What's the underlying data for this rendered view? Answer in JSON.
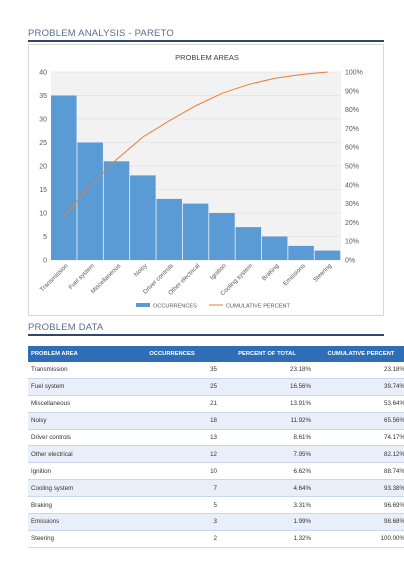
{
  "header": {
    "analysis_title": "PROBLEM ANALYSIS - PARETO",
    "data_title": "PROBLEM DATA"
  },
  "colors": {
    "bar": "#5b9bd5",
    "line": "#ed7d31",
    "table_header": "#2f6db5",
    "title_rule": "#31486a"
  },
  "chart_data": {
    "type": "bar",
    "title": "PROBLEM AREAS",
    "categories": [
      "Transmission",
      "Fuel system",
      "Miscellaneous",
      "Noisy",
      "Driver controls",
      "Other electrical",
      "Ignition",
      "Cooling system",
      "Braking",
      "Emissions",
      "Steering"
    ],
    "series": [
      {
        "name": "OCCURRENCES",
        "type": "bar",
        "axis": "left",
        "values": [
          35,
          25,
          21,
          18,
          13,
          12,
          10,
          7,
          5,
          3,
          2
        ]
      },
      {
        "name": "CUMULATIVE PERCENT",
        "type": "line",
        "axis": "right",
        "values": [
          23.18,
          39.74,
          53.64,
          65.56,
          74.17,
          82.12,
          88.74,
          93.38,
          96.69,
          98.68,
          100.0
        ]
      }
    ],
    "ylim": [
      0,
      40
    ],
    "yticks": [
      "0",
      "5",
      "10",
      "15",
      "20",
      "25",
      "30",
      "35",
      "40"
    ],
    "y2lim": [
      0,
      100
    ],
    "y2ticks": [
      "0%",
      "10%",
      "20%",
      "30%",
      "40%",
      "50%",
      "60%",
      "70%",
      "80%",
      "90%",
      "100%"
    ],
    "grid": true,
    "legend_position": "bottom"
  },
  "table": {
    "headers": [
      "PROBLEM AREA",
      "OCCURRENCES",
      "PERCENT OF TOTAL",
      "CUMULATIVE PERCENT"
    ],
    "rows": [
      [
        "Transmission",
        "35",
        "23.18%",
        "23.18%"
      ],
      [
        "Fuel system",
        "25",
        "16.56%",
        "39.74%"
      ],
      [
        "Miscellaneous",
        "21",
        "13.91%",
        "53.64%"
      ],
      [
        "Noisy",
        "18",
        "11.92%",
        "65.56%"
      ],
      [
        "Driver controls",
        "13",
        "8.61%",
        "74.17%"
      ],
      [
        "Other electrical",
        "12",
        "7.95%",
        "82.12%"
      ],
      [
        "Ignition",
        "10",
        "6.62%",
        "88.74%"
      ],
      [
        "Cooling system",
        "7",
        "4.64%",
        "93.38%"
      ],
      [
        "Braking",
        "5",
        "3.31%",
        "96.69%"
      ],
      [
        "Emissions",
        "3",
        "1.99%",
        "98.68%"
      ],
      [
        "Steering",
        "2",
        "1.32%",
        "100.00%"
      ]
    ]
  }
}
